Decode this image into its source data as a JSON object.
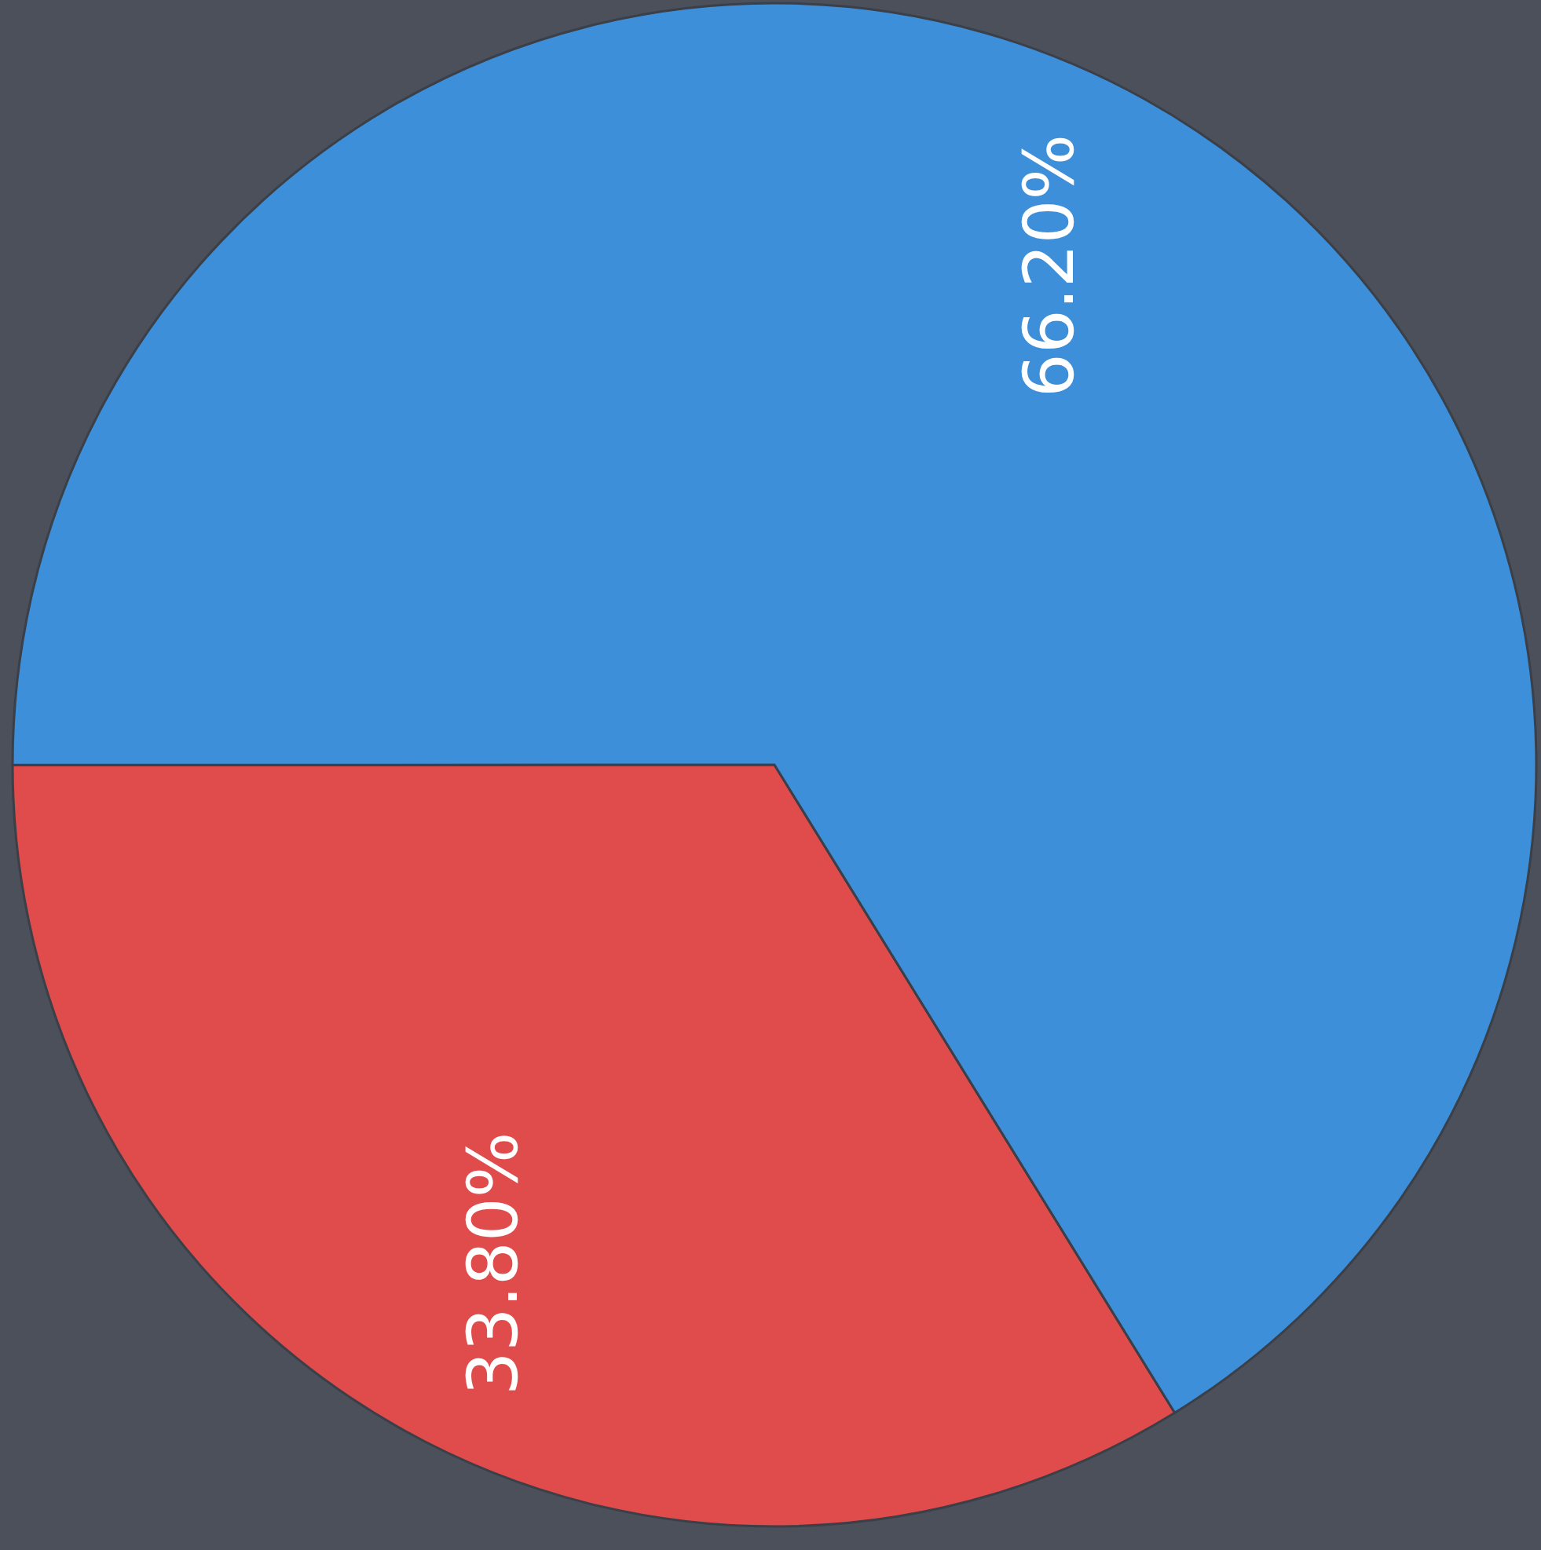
{
  "chart_data": {
    "type": "pie",
    "categories": [
      null,
      null
    ],
    "values": [
      33.8,
      66.2
    ],
    "colors": [
      "#e04b4b",
      "#3d8fd9"
    ],
    "value_labels": [
      "33.80%",
      "66.20%"
    ]
  }
}
